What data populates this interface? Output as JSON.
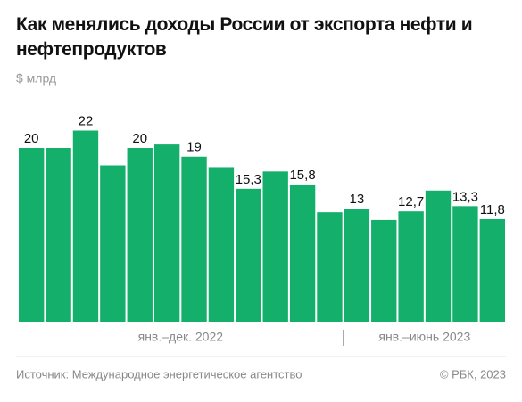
{
  "chart_data": {
    "type": "bar",
    "title": "Как менялись доходы России от экспорта нефти и нефтепродуктов",
    "subtitle": "$ млрд",
    "values": [
      20,
      20,
      22,
      18,
      20,
      20.4,
      19,
      17.8,
      15.3,
      17.3,
      15.8,
      12.6,
      13,
      11.7,
      12.7,
      15.1,
      13.3,
      11.8
    ],
    "value_labels": [
      "20",
      null,
      "22",
      null,
      "20",
      null,
      "19",
      null,
      "15,3",
      null,
      "15,8",
      null,
      "13",
      null,
      "12,7",
      null,
      "13,3",
      "11,8"
    ],
    "groups": [
      {
        "label": "янв.–дек. 2022",
        "count": 12
      },
      {
        "label": "янв.–июнь 2023",
        "count": 6
      }
    ],
    "color": "#14b06b",
    "ylim": [
      0,
      24
    ],
    "source": "Источник: Международное энергетическое агентство",
    "credit": "© РБК, 2023"
  }
}
